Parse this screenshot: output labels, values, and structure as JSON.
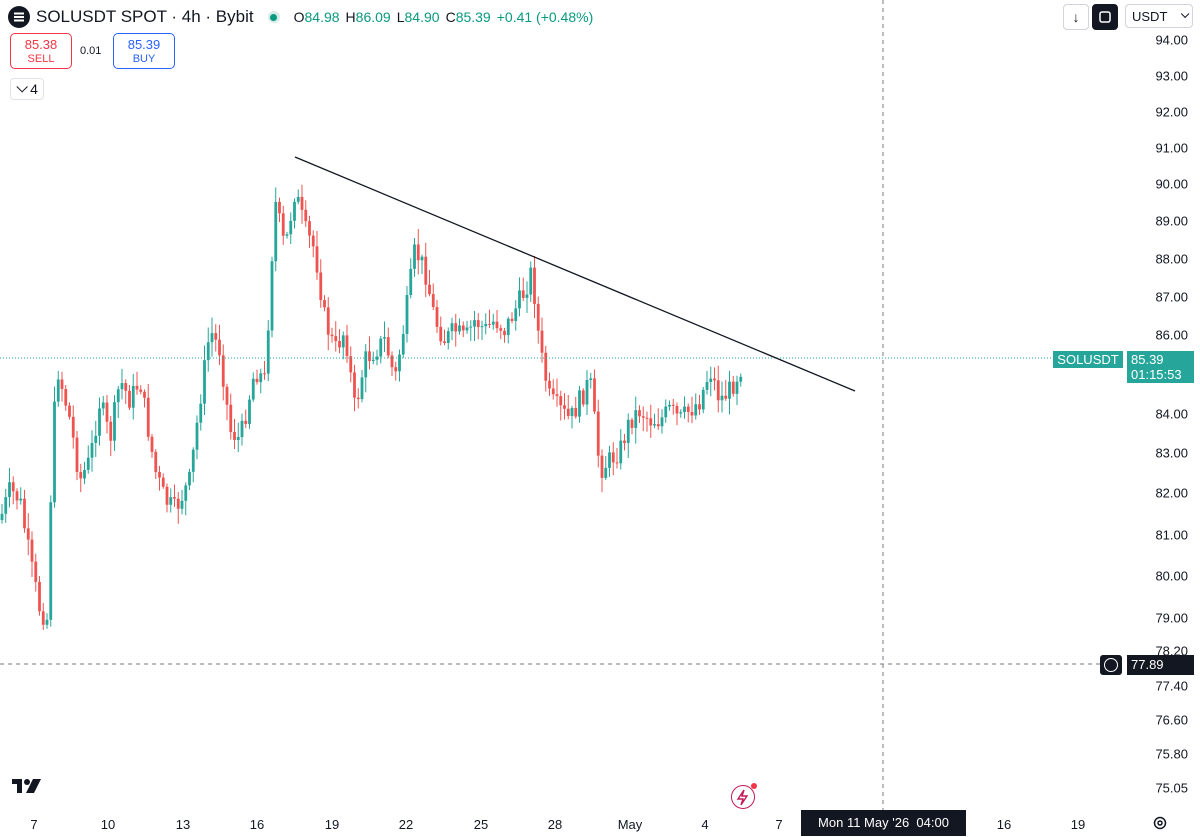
{
  "header": {
    "title": "SOLUSDT SPOT · 4h · Bybit",
    "ohlc": [
      {
        "k": "O",
        "v": "84.98"
      },
      {
        "k": "H",
        "v": "86.09"
      },
      {
        "k": "L",
        "v": "84.90"
      },
      {
        "k": "C",
        "v": "85.39"
      }
    ],
    "change": "+0.41 (+0.48%)"
  },
  "trade": {
    "sell_price": "85.38",
    "sell_label": "SELL",
    "spread": "0.01",
    "buy_price": "85.39",
    "buy_label": "BUY",
    "indicator_count": "4"
  },
  "toolbar": {
    "currency": "USDT"
  },
  "price_tag": {
    "symbol": "SOLUSDT",
    "price": "85.39",
    "countdown": "01:15:53"
  },
  "crosshair": {
    "price": "77.89",
    "date": "Mon 11 May '26",
    "time": "04:00"
  },
  "colors": {
    "up": "#26a69a",
    "down": "#ef5350",
    "accent": "#2962ff"
  },
  "chart_data": {
    "type": "candlestick",
    "y_axis_ticks": [
      "94.00",
      "93.00",
      "92.00",
      "91.00",
      "90.00",
      "89.00",
      "88.00",
      "87.00",
      "86.00",
      "84.00",
      "83.00",
      "82.00",
      "81.00",
      "80.00",
      "79.00",
      "78.20",
      "77.40",
      "76.60",
      "75.80",
      "75.05"
    ],
    "x_axis_ticks": [
      "7",
      "10",
      "13",
      "16",
      "19",
      "22",
      "25",
      "28",
      "May",
      "4",
      "7",
      "16",
      "19"
    ],
    "scale": "log",
    "last_price": 85.39,
    "trendline": [
      {
        "date": "Apr 17",
        "price": 90.8
      },
      {
        "date": "May 7",
        "price": 84.6
      }
    ]
  }
}
